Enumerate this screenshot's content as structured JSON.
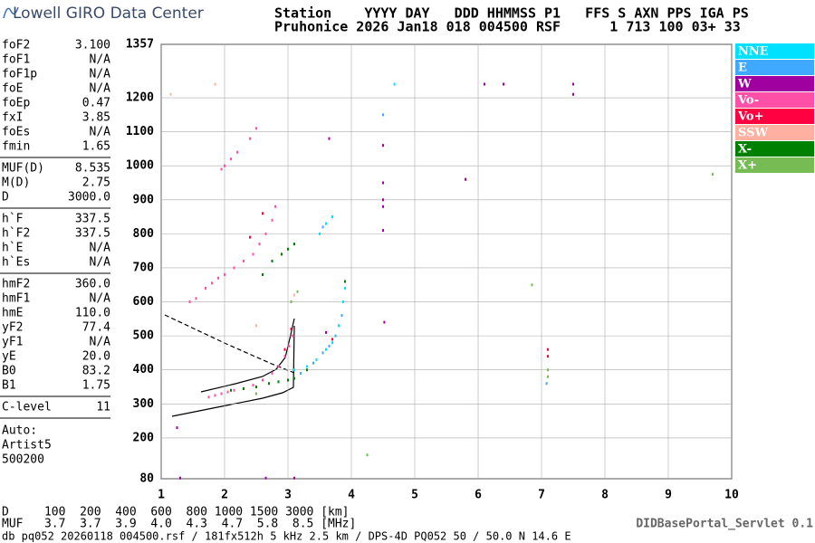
{
  "header": {
    "logo": "Lowell GIRO Data Center",
    "row1": "Station    YYYY DAY   DDD HHMMSS P1   FFS S AXN PPS IGA PS",
    "row2": "Pruhonice 2026 Jan18 018 004500 RSF      1 713 100 03+ 33"
  },
  "parameters": [
    [
      [
        "foF2",
        "3.100"
      ],
      [
        "foF1",
        "N/A"
      ],
      [
        "foF1p",
        "N/A"
      ],
      [
        "foE",
        "N/A"
      ],
      [
        "foEp",
        "0.47"
      ],
      [
        "fxI",
        "3.85"
      ],
      [
        "foEs",
        "N/A"
      ],
      [
        "fmin",
        "1.65"
      ]
    ],
    [
      [
        "MUF(D)",
        "8.535"
      ],
      [
        "M(D)",
        "2.75"
      ],
      [
        "D",
        "3000.0"
      ]
    ],
    [
      [
        "h`F",
        "337.5"
      ],
      [
        "h`F2",
        "337.5"
      ],
      [
        "h`E",
        "N/A"
      ],
      [
        "h`Es",
        "N/A"
      ]
    ],
    [
      [
        "hmF2",
        "360.0"
      ],
      [
        "hmF1",
        "N/A"
      ],
      [
        "hmE",
        "110.0"
      ],
      [
        "yF2",
        "77.4"
      ],
      [
        "yF1",
        "N/A"
      ],
      [
        "yE",
        "20.0"
      ],
      [
        "B0",
        "83.2"
      ],
      [
        "B1",
        "1.75"
      ]
    ],
    [
      [
        "C-level",
        "11"
      ]
    ]
  ],
  "autoscaling": [
    "Auto:",
    "Artist5",
    "500200"
  ],
  "muf_table": {
    "row1": "D     100  200  400  600  800 1000 1500 3000 [km]",
    "row2": "MUF   3.7  3.7  3.9  4.0  4.3  4.7  5.8  8.5 [MHz]"
  },
  "footer": {
    "file": "db pq052 20260118 004500.rsf / 181fx512h 5 kHz 2.5 km / DPS-4D PQ052 50 / 50.0 N 14.6 E",
    "servlet": "DIDBasePortal_Servlet 0.1"
  },
  "chart_data": {
    "type": "scatter",
    "xlim": [
      1,
      10
    ],
    "ylim": [
      80,
      1357
    ],
    "xticks": [
      1,
      2,
      3,
      4,
      5,
      6,
      7,
      8,
      9,
      10
    ],
    "yticks": [
      80,
      200,
      300,
      400,
      500,
      600,
      700,
      800,
      900,
      1000,
      1100,
      1200,
      1357
    ],
    "grid": true,
    "series": [
      {
        "name": "NNE",
        "color": "#00e0ff",
        "x": [
          3.1,
          3.3,
          3.45,
          3.6,
          3.7,
          3.8,
          3.87,
          3.9,
          3.5,
          3.6,
          3.7,
          4.68
        ],
        "values": [
          400,
          410,
          430,
          460,
          480,
          530,
          600,
          640,
          800,
          830,
          850,
          1240
        ]
      },
      {
        "name": "E",
        "color": "#3fa8ff",
        "x": [
          3.2,
          3.4,
          3.55,
          3.65,
          3.75,
          3.85,
          3.55,
          4.5,
          7.08
        ],
        "values": [
          390,
          420,
          450,
          470,
          500,
          560,
          820,
          1150,
          360
        ]
      },
      {
        "name": "W",
        "color": "#a000a0",
        "x": [
          4.5,
          4.5,
          4.5,
          4.5,
          4.5,
          4.52,
          3.65,
          6.1,
          6.4,
          7.5,
          7.5,
          5.8,
          3.6,
          3.1,
          2.65,
          1.3,
          1.25
        ],
        "values": [
          880,
          900,
          1060,
          950,
          810,
          540,
          1080,
          1240,
          1240,
          1240,
          1210,
          960,
          510,
          82,
          82,
          82,
          230
        ]
      },
      {
        "name": "Vo-",
        "color": "#ff50a8",
        "x": [
          1.75,
          1.85,
          1.95,
          2.05,
          2.15,
          2.3,
          2.45,
          2.6,
          2.75,
          2.85,
          2.95,
          3.02,
          3.07,
          1.7,
          1.8,
          1.9,
          2.0,
          2.15,
          2.3,
          2.45,
          2.55,
          2.65,
          2.75,
          2.8,
          1.95,
          2.0,
          2.1,
          2.2,
          2.4,
          2.5,
          1.55,
          1.45
        ],
        "values": [
          320,
          325,
          330,
          335,
          340,
          345,
          355,
          370,
          390,
          410,
          440,
          470,
          500,
          640,
          655,
          670,
          680,
          700,
          720,
          740,
          770,
          800,
          840,
          880,
          990,
          1000,
          1020,
          1040,
          1080,
          1110,
          610,
          600
        ]
      },
      {
        "name": "Vo+",
        "color": "#ff0040",
        "x": [
          2.4,
          2.6,
          2.95,
          3.05,
          3.7,
          7.1,
          7.1
        ],
        "values": [
          790,
          860,
          460,
          520,
          490,
          460,
          440
        ]
      },
      {
        "name": "SSW",
        "color": "#ffb0a0",
        "x": [
          1.15,
          1.85,
          2.5,
          3.1
        ],
        "values": [
          1210,
          1240,
          530,
          620
        ]
      },
      {
        "name": "X-",
        "color": "#008000",
        "x": [
          2.1,
          2.3,
          2.5,
          2.7,
          2.85,
          3.0,
          3.1,
          2.9,
          3.0,
          3.1,
          2.75,
          2.6,
          3.9,
          3.3
        ],
        "values": [
          340,
          345,
          350,
          360,
          365,
          370,
          375,
          740,
          755,
          770,
          720,
          680,
          660,
          400
        ]
      },
      {
        "name": "X+",
        "color": "#77bb55",
        "x": [
          2.5,
          3.05,
          3.15,
          6.85,
          9.7,
          4.25,
          7.1,
          7.1
        ],
        "values": [
          330,
          600,
          630,
          650,
          975,
          150,
          400,
          380
        ]
      }
    ]
  }
}
